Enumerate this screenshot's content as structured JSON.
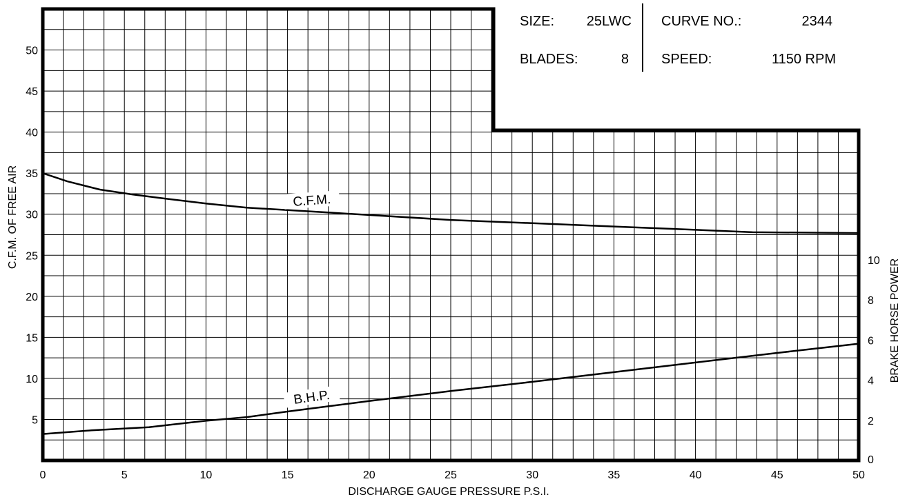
{
  "chart_data": {
    "type": "line",
    "title": "",
    "xlabel": "DISCHARGE GAUGE PRESSURE P.S.I.",
    "ylabel": "C.F.M. OF FREE AIR",
    "y2label": "BRAKE HORSE POWER",
    "xlim": [
      0,
      50
    ],
    "ylim": [
      0,
      55
    ],
    "y2lim": [
      0,
      22.5
    ],
    "x_ticks": [
      0,
      5,
      10,
      15,
      20,
      25,
      30,
      35,
      40,
      45,
      50
    ],
    "y_ticks": [
      5,
      10,
      15,
      20,
      25,
      30,
      35,
      40,
      45,
      50
    ],
    "y2_ticks": [
      0,
      2,
      4,
      6,
      8,
      10
    ],
    "grid": true,
    "series": [
      {
        "name": "C.F.M.",
        "axis": "left",
        "x": [
          0,
          1.5,
          3.5,
          5.5,
          7.5,
          10,
          12.5,
          15,
          17.5,
          20,
          25,
          30,
          35,
          40,
          43.5,
          50
        ],
        "values": [
          35.0,
          34.0,
          33.0,
          32.4,
          31.9,
          31.3,
          30.8,
          30.5,
          30.2,
          29.9,
          29.3,
          28.9,
          28.5,
          28.1,
          27.8,
          27.7
        ]
      },
      {
        "name": "B.H.P.",
        "axis": "right",
        "x": [
          0,
          3,
          6.5,
          10,
          12.5,
          15,
          17.5,
          20,
          25,
          30,
          35,
          40,
          45,
          50
        ],
        "values": [
          1.32,
          1.5,
          1.66,
          1.98,
          2.16,
          2.44,
          2.7,
          2.96,
          3.46,
          3.92,
          4.4,
          4.88,
          5.36,
          5.82
        ]
      }
    ],
    "info": {
      "size_label": "SIZE:",
      "size_value": "25LWC",
      "blades_label": "BLADES:",
      "blades_value": "8",
      "curve_label": "CURVE NO.:",
      "curve_value": "2344",
      "speed_label": "SPEED:",
      "speed_value": "1150 RPM"
    }
  }
}
